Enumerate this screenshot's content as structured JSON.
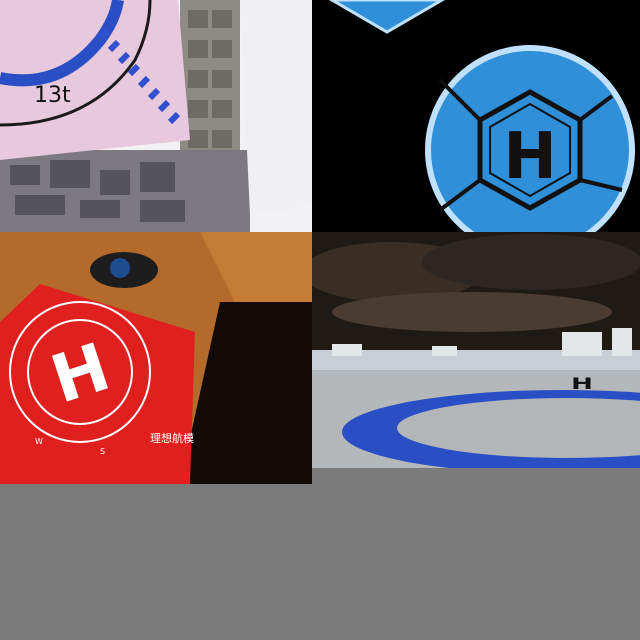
{
  "collage": {
    "top_left": {
      "marking_text": "13t"
    },
    "top_right": {
      "letter": "H"
    },
    "bottom_left": {
      "letter": "H",
      "brand_text": "理想航模",
      "compass_w": "W",
      "compass_s": "S"
    },
    "bottom_right": {
      "letter": "H"
    }
  },
  "colors": {
    "gray_background": "#7b7b7b",
    "pad_blue": "#2f8fd8",
    "mat_red": "#e01f1f",
    "pink_pad": "#e8c8dc",
    "ring_blue": "#2a4fc4"
  },
  "icons": {
    "top_left": "helipad-marking-aerial",
    "top_right": "hexagon-helipad-icon",
    "bottom_left": "helipad-mat-photo",
    "bottom_right": "rooftop-helipad-photo"
  }
}
